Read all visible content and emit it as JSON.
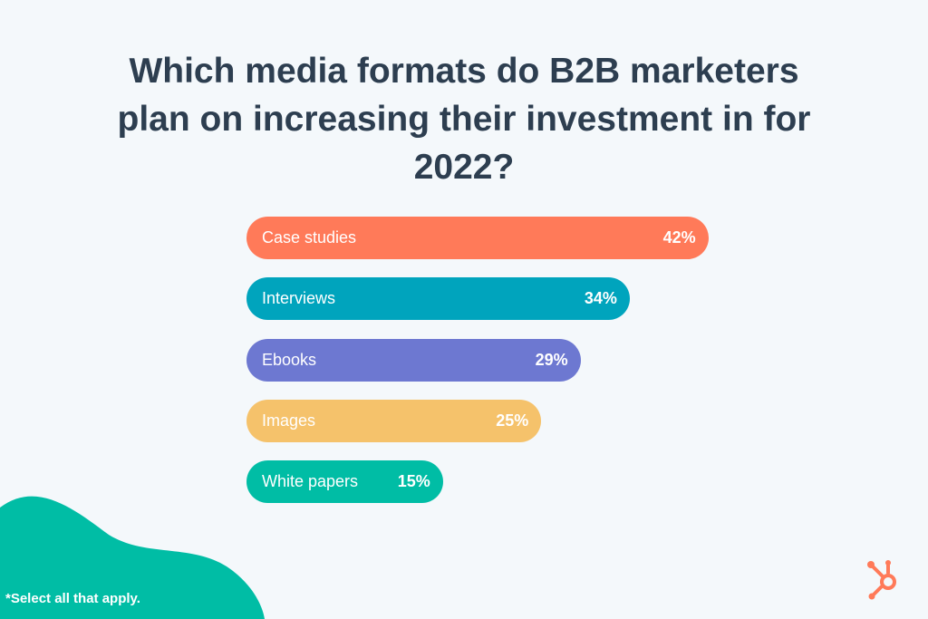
{
  "chart_data": {
    "type": "bar",
    "orientation": "horizontal",
    "title": "Which media formats do B2B marketers plan on increasing their investment in for 2022?",
    "categories": [
      "Case studies",
      "Interviews",
      "Ebooks",
      "Images",
      "White papers"
    ],
    "values": [
      42,
      34,
      29,
      25,
      15
    ],
    "value_labels": [
      "42%",
      "34%",
      "29%",
      "25%",
      "15%"
    ],
    "colors": [
      "#ff7a59",
      "#00a4bd",
      "#6d78d1",
      "#f5c26b",
      "#00bda5"
    ],
    "xlabel": "",
    "ylabel": "",
    "grid": false
  },
  "footnote": "*Select all that apply.",
  "colors": {
    "background": "#f4f8fb",
    "title": "#2d3e50",
    "blob": "#00bda5",
    "logo": "#ff7a59"
  }
}
